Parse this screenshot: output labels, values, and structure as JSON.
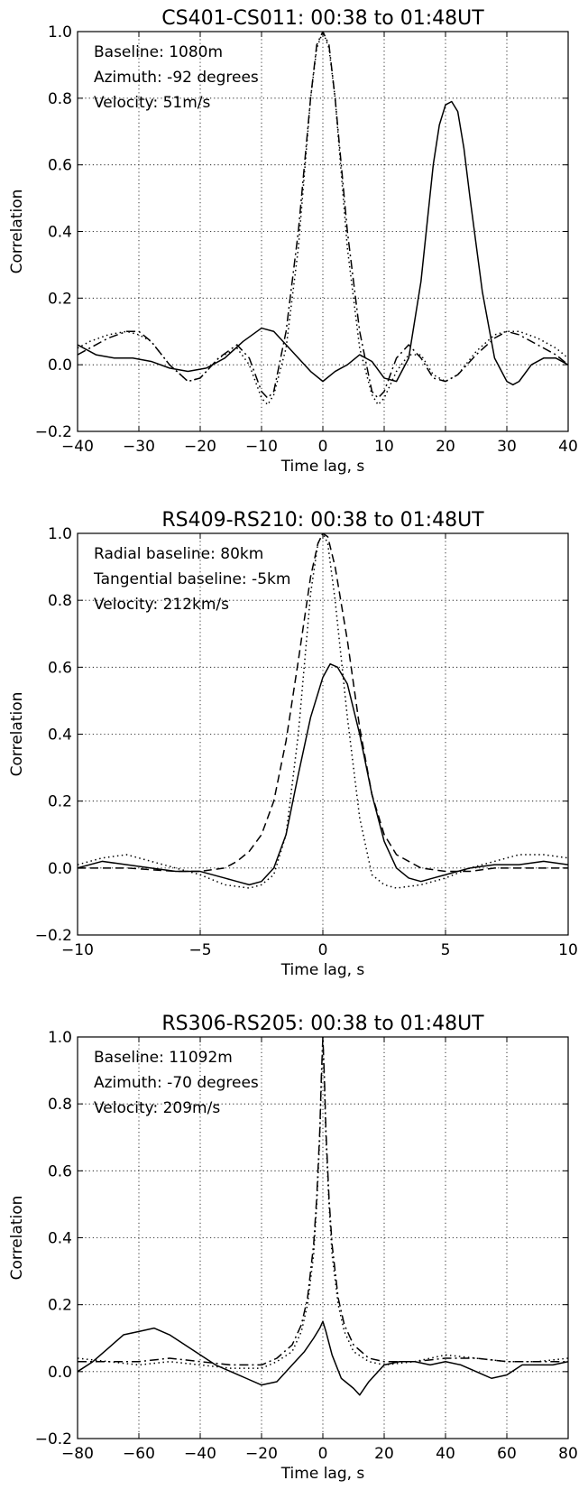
{
  "chart_data": [
    {
      "type": "line",
      "title": "CS401-CS011: 00:38 to 01:48UT",
      "xlabel": "Time lag, s",
      "ylabel": "Correlation",
      "xlim": [
        -40,
        40
      ],
      "ylim": [
        -0.2,
        1.0
      ],
      "xticks": [
        "−40",
        "−30",
        "−20",
        "−10",
        "0",
        "10",
        "20",
        "30",
        "40"
      ],
      "yticks": [
        "−0.2",
        "0.0",
        "0.2",
        "0.4",
        "0.6",
        "0.8",
        "1.0"
      ],
      "grid": true,
      "annotations": [
        "Baseline: 1080m",
        "Azimuth: -92 degrees",
        "Velocity: 51m/s"
      ],
      "series": [
        {
          "style": "solid",
          "x": [
            -40,
            -37,
            -34,
            -31,
            -28,
            -25,
            -22,
            -19,
            -16,
            -13,
            -10,
            -8,
            -6,
            -4,
            -2,
            0,
            2,
            4,
            6,
            8,
            10,
            12,
            14,
            16,
            18,
            19,
            20,
            21,
            22,
            23,
            24,
            26,
            28,
            30,
            31,
            32,
            34,
            36,
            38,
            40
          ],
          "y": [
            0.06,
            0.03,
            0.02,
            0.02,
            0.01,
            -0.01,
            -0.02,
            -0.01,
            0.02,
            0.07,
            0.11,
            0.1,
            0.06,
            0.02,
            -0.02,
            -0.05,
            -0.02,
            0.0,
            0.03,
            0.01,
            -0.04,
            -0.05,
            0.02,
            0.25,
            0.6,
            0.72,
            0.78,
            0.79,
            0.76,
            0.65,
            0.5,
            0.22,
            0.02,
            -0.05,
            -0.06,
            -0.05,
            0.0,
            0.02,
            0.02,
            0.0
          ]
        },
        {
          "style": "dashdot",
          "x": [
            -40,
            -38,
            -35,
            -32,
            -30,
            -28,
            -25,
            -22,
            -20,
            -17,
            -14,
            -12,
            -10,
            -9,
            -8,
            -6,
            -4,
            -2,
            -1,
            0,
            1,
            2,
            4,
            6,
            8,
            9,
            10,
            12,
            14,
            16,
            18,
            20,
            22,
            25,
            28,
            30,
            32,
            35,
            38,
            40
          ],
          "y": [
            0.03,
            0.05,
            0.08,
            0.1,
            0.1,
            0.07,
            0.0,
            -0.05,
            -0.04,
            0.02,
            0.06,
            0.02,
            -0.08,
            -0.1,
            -0.08,
            0.1,
            0.4,
            0.8,
            0.96,
            1.0,
            0.96,
            0.8,
            0.4,
            0.1,
            -0.08,
            -0.1,
            -0.08,
            0.02,
            0.06,
            0.02,
            -0.04,
            -0.05,
            -0.03,
            0.03,
            0.08,
            0.1,
            0.09,
            0.06,
            0.03,
            0.0
          ]
        },
        {
          "style": "dotted",
          "x": [
            -40,
            -38,
            -35,
            -32,
            -30,
            -28,
            -25,
            -22,
            -20,
            -17,
            -14,
            -12,
            -10,
            -9,
            -8,
            -6,
            -4,
            -2,
            -1,
            0,
            1,
            2,
            4,
            6,
            8,
            9,
            10,
            12,
            14,
            16,
            18,
            20,
            22,
            25,
            28,
            30,
            32,
            35,
            38,
            40
          ],
          "y": [
            0.05,
            0.07,
            0.09,
            0.1,
            0.09,
            0.07,
            0.0,
            -0.05,
            -0.04,
            0.02,
            0.05,
            0.0,
            -0.1,
            -0.12,
            -0.09,
            0.05,
            0.35,
            0.8,
            0.95,
            1.0,
            0.95,
            0.8,
            0.35,
            0.05,
            -0.09,
            -0.12,
            -0.1,
            -0.02,
            0.03,
            0.03,
            -0.03,
            -0.05,
            -0.03,
            0.04,
            0.09,
            0.1,
            0.1,
            0.08,
            0.05,
            0.02
          ]
        }
      ]
    },
    {
      "type": "line",
      "title": "RS409-RS210: 00:38 to 01:48UT",
      "xlabel": "Time lag, s",
      "ylabel": "Correlation",
      "xlim": [
        -10,
        10
      ],
      "ylim": [
        -0.2,
        1.0
      ],
      "xticks": [
        "−10",
        "−5",
        "0",
        "5",
        "10"
      ],
      "yticks": [
        "−0.2",
        "0.0",
        "0.2",
        "0.4",
        "0.6",
        "0.8",
        "1.0"
      ],
      "grid": true,
      "annotations": [
        "Radial baseline: 80km",
        "Tangential baseline: -5km",
        "Velocity: 212km/s"
      ],
      "series": [
        {
          "style": "solid",
          "x": [
            -10,
            -9,
            -8,
            -7,
            -6,
            -5,
            -4,
            -3.5,
            -3,
            -2.5,
            -2,
            -1.5,
            -1,
            -0.5,
            0,
            0.3,
            0.6,
            1,
            1.5,
            2,
            2.5,
            3,
            3.5,
            4,
            4.5,
            5,
            6,
            7,
            8,
            9,
            10
          ],
          "y": [
            0.0,
            0.02,
            0.01,
            0.0,
            -0.01,
            -0.01,
            -0.03,
            -0.04,
            -0.05,
            -0.04,
            0.0,
            0.1,
            0.28,
            0.45,
            0.57,
            0.61,
            0.6,
            0.55,
            0.4,
            0.22,
            0.08,
            0.0,
            -0.03,
            -0.04,
            -0.03,
            -0.02,
            0.0,
            0.01,
            0.01,
            0.02,
            0.01
          ]
        },
        {
          "style": "dashed",
          "x": [
            -10,
            -8,
            -6,
            -5,
            -4,
            -3.5,
            -3,
            -2.5,
            -2,
            -1.5,
            -1,
            -0.5,
            -0.2,
            0,
            0.2,
            0.5,
            1,
            1.5,
            2,
            2.5,
            3,
            3.5,
            4,
            5,
            6,
            7,
            8,
            9,
            10
          ],
          "y": [
            0.0,
            0.0,
            -0.01,
            -0.01,
            0.0,
            0.02,
            0.05,
            0.1,
            0.2,
            0.38,
            0.62,
            0.87,
            0.97,
            1.0,
            0.99,
            0.9,
            0.68,
            0.42,
            0.22,
            0.1,
            0.04,
            0.02,
            0.0,
            -0.01,
            -0.01,
            0.0,
            0.0,
            0.0,
            0.0
          ]
        },
        {
          "style": "dotted",
          "x": [
            -10,
            -9,
            -8,
            -7,
            -6,
            -5,
            -4,
            -3,
            -2.5,
            -2,
            -1.5,
            -1,
            -0.5,
            -0.2,
            0,
            0.2,
            0.5,
            1,
            1.5,
            2,
            2.5,
            3,
            4,
            5,
            6,
            7,
            8,
            9,
            10
          ],
          "y": [
            0.01,
            0.03,
            0.04,
            0.02,
            0.0,
            -0.02,
            -0.05,
            -0.06,
            -0.05,
            -0.02,
            0.1,
            0.4,
            0.82,
            0.97,
            1.0,
            0.97,
            0.8,
            0.45,
            0.15,
            -0.02,
            -0.05,
            -0.06,
            -0.05,
            -0.03,
            0.0,
            0.02,
            0.04,
            0.04,
            0.03
          ]
        }
      ]
    },
    {
      "type": "line",
      "title": "RS306-RS205: 00:38 to 01:48UT",
      "xlabel": "Time lag, s",
      "ylabel": "Correlation",
      "xlim": [
        -80,
        80
      ],
      "ylim": [
        -0.2,
        1.0
      ],
      "xticks": [
        "−80",
        "−60",
        "−40",
        "−20",
        "0",
        "20",
        "40",
        "60",
        "80"
      ],
      "yticks": [
        "−0.2",
        "0.0",
        "0.2",
        "0.4",
        "0.6",
        "0.8",
        "1.0"
      ],
      "grid": true,
      "annotations": [
        "Baseline: 11092m",
        "Azimuth: -70 degrees",
        "Velocity: 209m/s"
      ],
      "series": [
        {
          "style": "solid",
          "x": [
            -80,
            -75,
            -70,
            -65,
            -60,
            -55,
            -50,
            -45,
            -40,
            -35,
            -30,
            -25,
            -20,
            -15,
            -10,
            -6,
            -3,
            -1,
            0,
            1,
            3,
            6,
            10,
            12,
            15,
            20,
            25,
            30,
            35,
            40,
            45,
            50,
            55,
            60,
            65,
            70,
            75,
            80
          ],
          "y": [
            0.0,
            0.03,
            0.07,
            0.11,
            0.12,
            0.13,
            0.11,
            0.08,
            0.05,
            0.02,
            0.0,
            -0.02,
            -0.04,
            -0.03,
            0.02,
            0.06,
            0.1,
            0.13,
            0.15,
            0.12,
            0.05,
            -0.02,
            -0.05,
            -0.07,
            -0.03,
            0.02,
            0.03,
            0.03,
            0.02,
            0.03,
            0.02,
            0.0,
            -0.02,
            -0.01,
            0.02,
            0.02,
            0.02,
            0.03
          ]
        },
        {
          "style": "dashdot",
          "x": [
            -80,
            -70,
            -60,
            -50,
            -40,
            -30,
            -20,
            -15,
            -10,
            -7,
            -5,
            -3,
            -2,
            -1,
            -0.5,
            0,
            0.5,
            1,
            2,
            3,
            5,
            7,
            10,
            15,
            20,
            30,
            40,
            50,
            60,
            70,
            80
          ],
          "y": [
            0.03,
            0.03,
            0.03,
            0.04,
            0.03,
            0.02,
            0.02,
            0.04,
            0.08,
            0.14,
            0.22,
            0.38,
            0.52,
            0.72,
            0.88,
            1.0,
            0.88,
            0.72,
            0.52,
            0.38,
            0.22,
            0.14,
            0.08,
            0.04,
            0.03,
            0.03,
            0.04,
            0.04,
            0.03,
            0.03,
            0.03
          ]
        },
        {
          "style": "dotted",
          "x": [
            -80,
            -70,
            -60,
            -50,
            -40,
            -30,
            -20,
            -15,
            -10,
            -7,
            -5,
            -3,
            -2,
            -1,
            -0.5,
            0,
            0.5,
            1,
            2,
            3,
            5,
            7,
            10,
            15,
            20,
            30,
            40,
            50,
            60,
            70,
            80
          ],
          "y": [
            0.04,
            0.03,
            0.02,
            0.03,
            0.02,
            0.01,
            0.01,
            0.03,
            0.06,
            0.12,
            0.2,
            0.35,
            0.5,
            0.7,
            0.86,
            1.0,
            0.86,
            0.7,
            0.5,
            0.35,
            0.2,
            0.12,
            0.06,
            0.03,
            0.02,
            0.03,
            0.05,
            0.04,
            0.03,
            0.03,
            0.04
          ]
        }
      ]
    }
  ]
}
